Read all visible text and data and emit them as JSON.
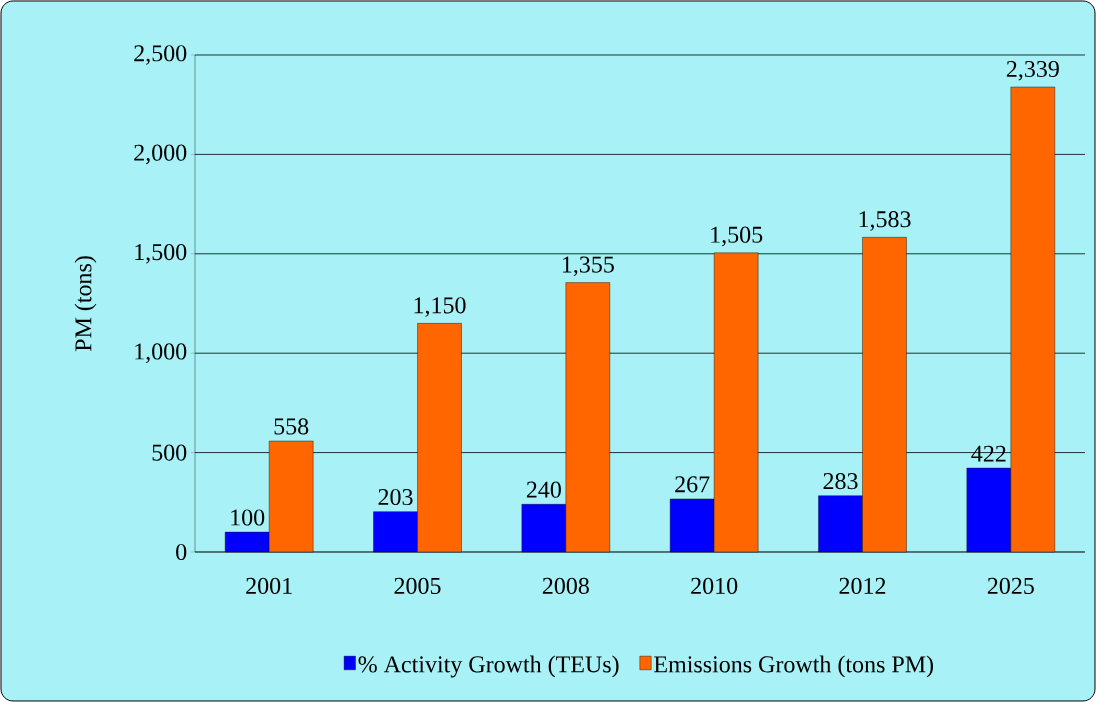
{
  "chart_data": {
    "type": "bar",
    "ylabel": "PM (tons)",
    "categories": [
      "2001",
      "2005",
      "2008",
      "2010",
      "2012",
      "2025"
    ],
    "series": [
      {
        "name": "% Activity Growth (TEUs)",
        "color": "#0000ff",
        "values": [
          100,
          203,
          240,
          267,
          283,
          422
        ],
        "value_labels": [
          "100",
          "203",
          "240",
          "267",
          "283",
          "422"
        ]
      },
      {
        "name": "Emissions Growth (tons PM)",
        "color": "#ff6600",
        "values": [
          558,
          1150,
          1355,
          1505,
          1583,
          2339
        ],
        "value_labels": [
          "558",
          "1,150",
          "1,355",
          "1,505",
          "1,583",
          "2,339"
        ]
      }
    ],
    "ylim": [
      0,
      2500
    ],
    "yticks": [
      {
        "value": 0,
        "label": "0"
      },
      {
        "value": 500,
        "label": "500"
      },
      {
        "value": 1000,
        "label": "1,000"
      },
      {
        "value": 1500,
        "label": "1,500"
      },
      {
        "value": 2000,
        "label": "2,000"
      },
      {
        "value": 2500,
        "label": "2,500"
      }
    ],
    "grid": "y",
    "legend": "bottom"
  }
}
